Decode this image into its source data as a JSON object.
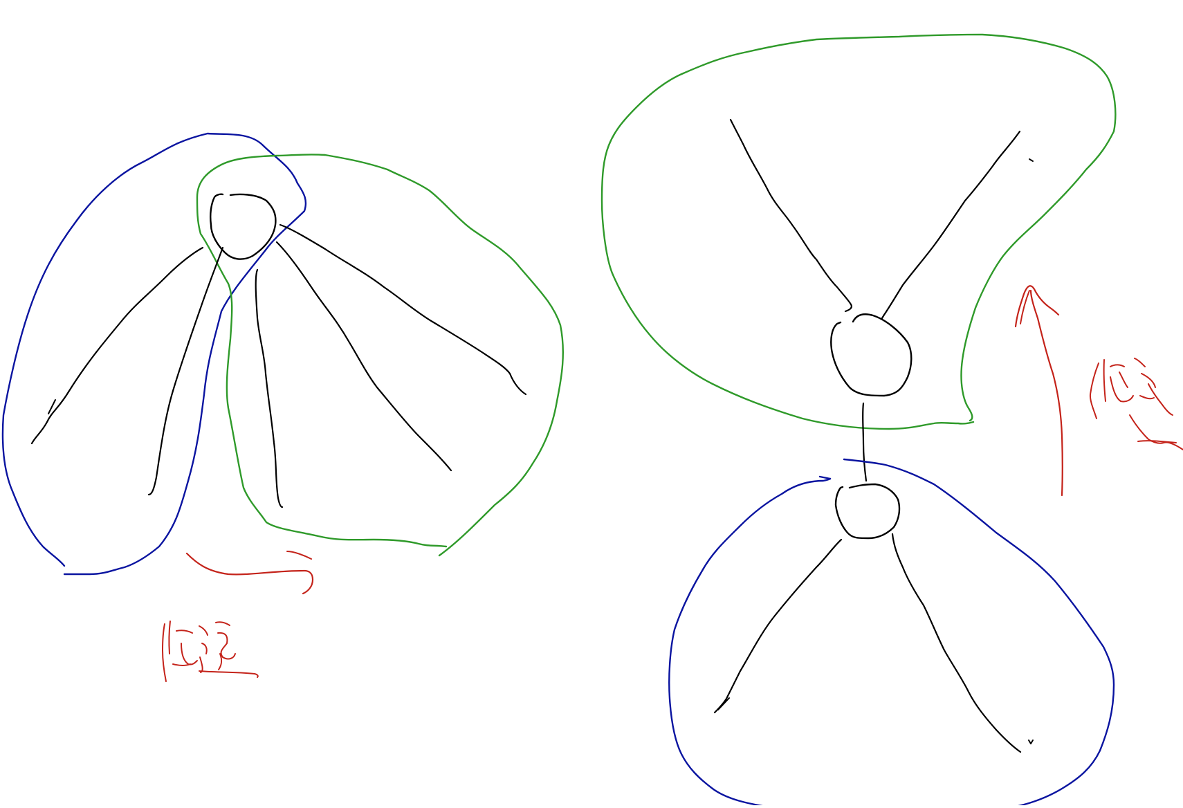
{
  "colors": {
    "background": "#ffffff",
    "ink_black": "#000000",
    "ink_blue": "#0a14a0",
    "ink_green": "#2f9a2a",
    "ink_red": "#c4231a"
  },
  "left_diagram": {
    "annotation_handwritten": "传递"
  },
  "right_diagram": {
    "annotation_handwritten": "传递"
  }
}
